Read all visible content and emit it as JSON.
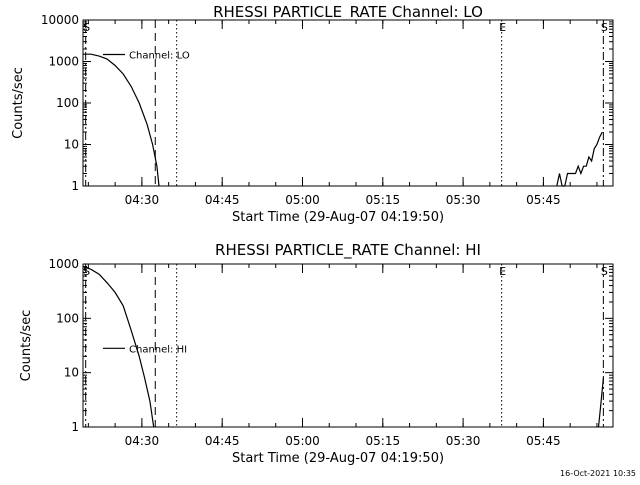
{
  "chart_data": [
    {
      "type": "line",
      "title": "RHESSI PARTICLE_RATE Channel: LO",
      "xlabel": "Start Time (29-Aug-07 04:19:50)",
      "ylabel": "Counts/sec",
      "yscale": "log",
      "ylim": [
        1,
        10000
      ],
      "xlim_minutes": [
        0,
        99
      ],
      "x_ticks": [
        {
          "t": 11,
          "label": "04:30"
        },
        {
          "t": 26,
          "label": "04:45"
        },
        {
          "t": 41,
          "label": "05:00"
        },
        {
          "t": 56,
          "label": "05:15"
        },
        {
          "t": 71,
          "label": "05:30"
        },
        {
          "t": 86,
          "label": "05:45"
        }
      ],
      "y_ticks": [
        {
          "v": 1,
          "label": "1"
        },
        {
          "v": 10,
          "label": "10"
        },
        {
          "v": 100,
          "label": "100"
        },
        {
          "v": 1000,
          "label": "1000"
        },
        {
          "v": 10000,
          "label": "10000"
        }
      ],
      "legend": {
        "position": "top-left",
        "label": "Channel: LO"
      },
      "series": [
        {
          "name": "Channel: LO",
          "segments": [
            [
              [
                0,
                1500
              ],
              [
                1.5,
                1500
              ],
              [
                3,
                1350
              ],
              [
                4.5,
                1150
              ],
              [
                6,
                800
              ],
              [
                7.5,
                500
              ],
              [
                9,
                250
              ],
              [
                10.5,
                100
              ],
              [
                12,
                30
              ],
              [
                13,
                10
              ],
              [
                13.8,
                3
              ],
              [
                14.2,
                1
              ]
            ],
            [
              [
                88.5,
                1
              ],
              [
                89,
                2
              ],
              [
                89.5,
                1
              ],
              [
                90,
                1
              ],
              [
                90.5,
                2
              ],
              [
                91,
                2
              ],
              [
                91.5,
                2
              ],
              [
                92,
                2
              ],
              [
                92.5,
                3
              ],
              [
                93,
                2
              ],
              [
                93.5,
                3
              ],
              [
                94,
                3
              ],
              [
                94.5,
                5
              ],
              [
                95,
                4
              ],
              [
                95.5,
                8
              ],
              [
                96,
                10
              ],
              [
                96.5,
                15
              ],
              [
                97,
                20
              ]
            ]
          ]
        }
      ],
      "markers": [
        {
          "t": 0.5,
          "label": "S",
          "style": "dashdot"
        },
        {
          "t": 13.5,
          "label": "",
          "style": "dashed"
        },
        {
          "t": 17.5,
          "label": "",
          "style": "dotted"
        },
        {
          "t": 78.2,
          "label": "E",
          "style": "dotted"
        },
        {
          "t": 97.2,
          "label": "S",
          "style": "dashdot"
        }
      ]
    },
    {
      "type": "line",
      "title": "RHESSI PARTICLE_RATE Channel: HI",
      "xlabel": "Start Time (29-Aug-07 04:19:50)",
      "ylabel": "Counts/sec",
      "yscale": "log",
      "ylim": [
        1,
        1000
      ],
      "xlim_minutes": [
        0,
        99
      ],
      "x_ticks": [
        {
          "t": 11,
          "label": "04:30"
        },
        {
          "t": 26,
          "label": "04:45"
        },
        {
          "t": 41,
          "label": "05:00"
        },
        {
          "t": 56,
          "label": "05:15"
        },
        {
          "t": 71,
          "label": "05:30"
        },
        {
          "t": 86,
          "label": "05:45"
        }
      ],
      "y_ticks": [
        {
          "v": 1,
          "label": "1"
        },
        {
          "v": 10,
          "label": "10"
        },
        {
          "v": 100,
          "label": "100"
        },
        {
          "v": 1000,
          "label": "1000"
        }
      ],
      "legend": {
        "position": "top-left",
        "label": "Channel: HI"
      },
      "series": [
        {
          "name": "Channel: HI",
          "segments": [
            [
              [
                0,
                900
              ],
              [
                1.5,
                800
              ],
              [
                3,
                650
              ],
              [
                4.5,
                450
              ],
              [
                6,
                300
              ],
              [
                7.5,
                170
              ],
              [
                9,
                60
              ],
              [
                10.5,
                20
              ],
              [
                11.5,
                8
              ],
              [
                12.5,
                3
              ],
              [
                13.2,
                1
              ]
            ],
            [
              [
                96.3,
                1
              ],
              [
                96.6,
                2
              ],
              [
                96.9,
                4
              ],
              [
                97.2,
                8
              ]
            ]
          ]
        }
      ],
      "markers": [
        {
          "t": 0.5,
          "label": "S",
          "style": "dashdot"
        },
        {
          "t": 13.5,
          "label": "",
          "style": "dashed"
        },
        {
          "t": 17.5,
          "label": "",
          "style": "dotted"
        },
        {
          "t": 78.2,
          "label": "E",
          "style": "dotted"
        },
        {
          "t": 97.2,
          "label": "S",
          "style": "dashdot"
        }
      ]
    }
  ],
  "footer": {
    "timestamp": "16-Oct-2021 10:35"
  }
}
